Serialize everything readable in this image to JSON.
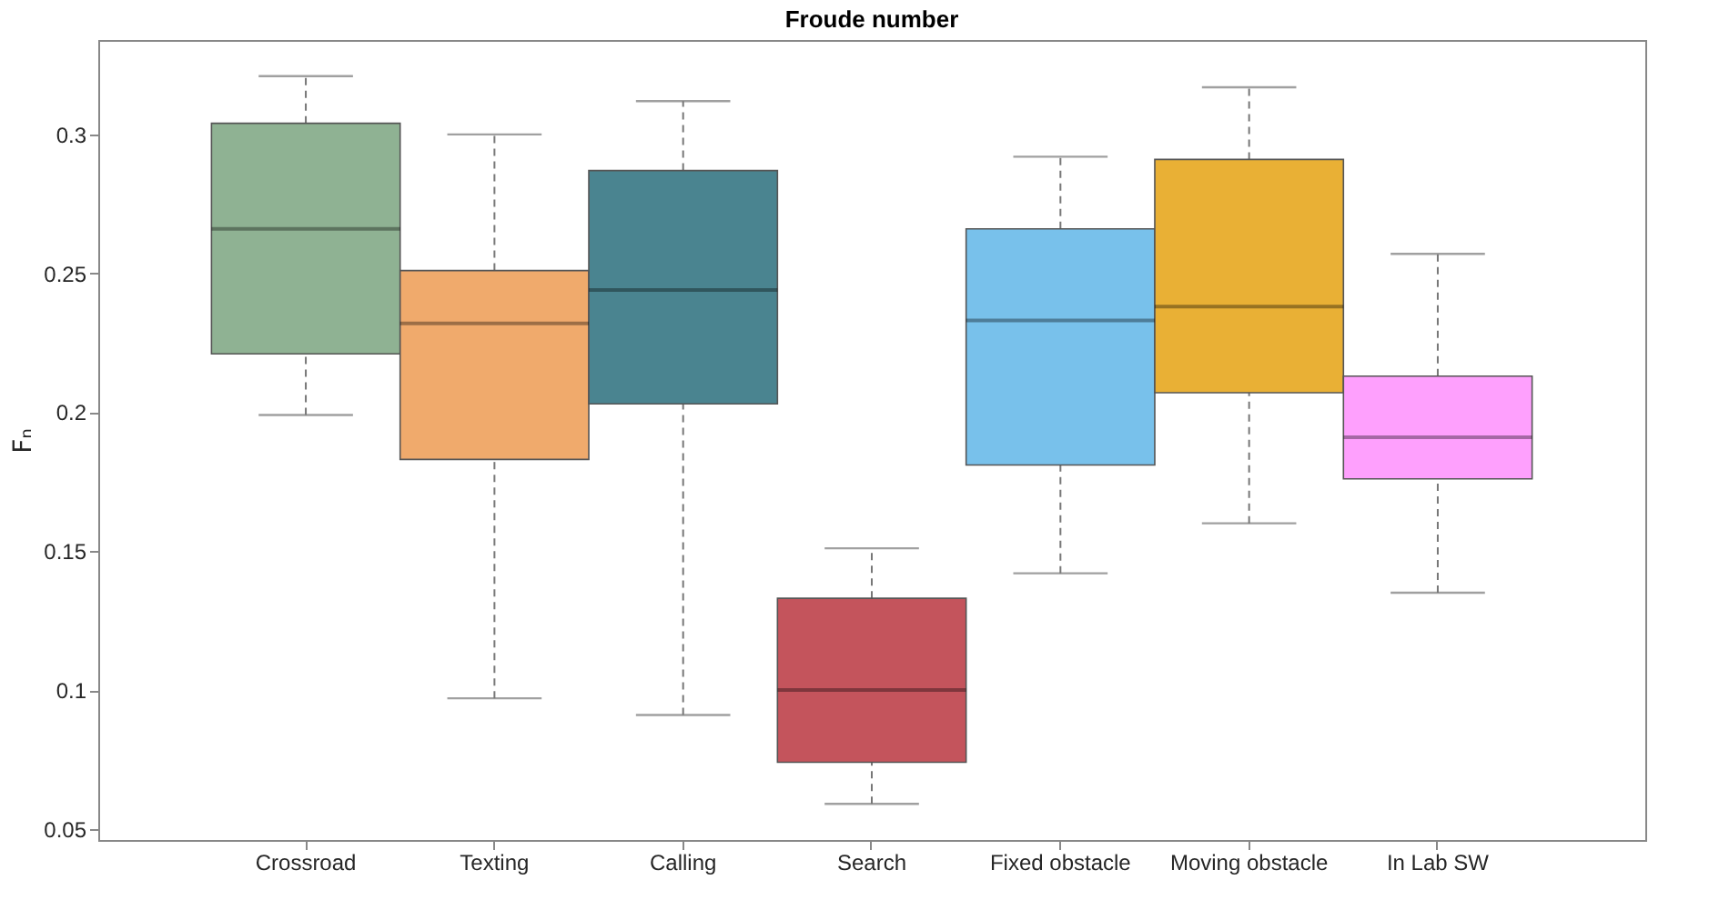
{
  "chart_data": {
    "type": "box",
    "title": "Froude number",
    "ylabel": "Fₙ",
    "categories": [
      "Crossroad",
      "Texting",
      "Calling",
      "Search",
      "Fixed obstacle",
      "Moving obstacle",
      "In Lab SW"
    ],
    "colors": [
      "#8fb293",
      "#f0aa6c",
      "#4a8490",
      "#c4545c",
      "#78c1eb",
      "#e9b035",
      "#fea0fd"
    ],
    "boxes": [
      {
        "low": 0.199,
        "q1": 0.221,
        "median": 0.266,
        "q3": 0.304,
        "high": 0.321
      },
      {
        "low": 0.097,
        "q1": 0.183,
        "median": 0.232,
        "q3": 0.251,
        "high": 0.3
      },
      {
        "low": 0.091,
        "q1": 0.203,
        "median": 0.244,
        "q3": 0.287,
        "high": 0.312
      },
      {
        "low": 0.059,
        "q1": 0.074,
        "median": 0.1,
        "q3": 0.133,
        "high": 0.151
      },
      {
        "low": 0.142,
        "q1": 0.181,
        "median": 0.233,
        "q3": 0.266,
        "high": 0.292
      },
      {
        "low": 0.16,
        "q1": 0.207,
        "median": 0.238,
        "q3": 0.291,
        "high": 0.317
      },
      {
        "low": 0.135,
        "q1": 0.176,
        "median": 0.191,
        "q3": 0.213,
        "high": 0.257
      }
    ],
    "ylim": [
      0.046,
      0.334
    ],
    "yticks": [
      0.05,
      0.1,
      0.15,
      0.2,
      0.25,
      0.3
    ],
    "grid": false,
    "legend": false
  }
}
